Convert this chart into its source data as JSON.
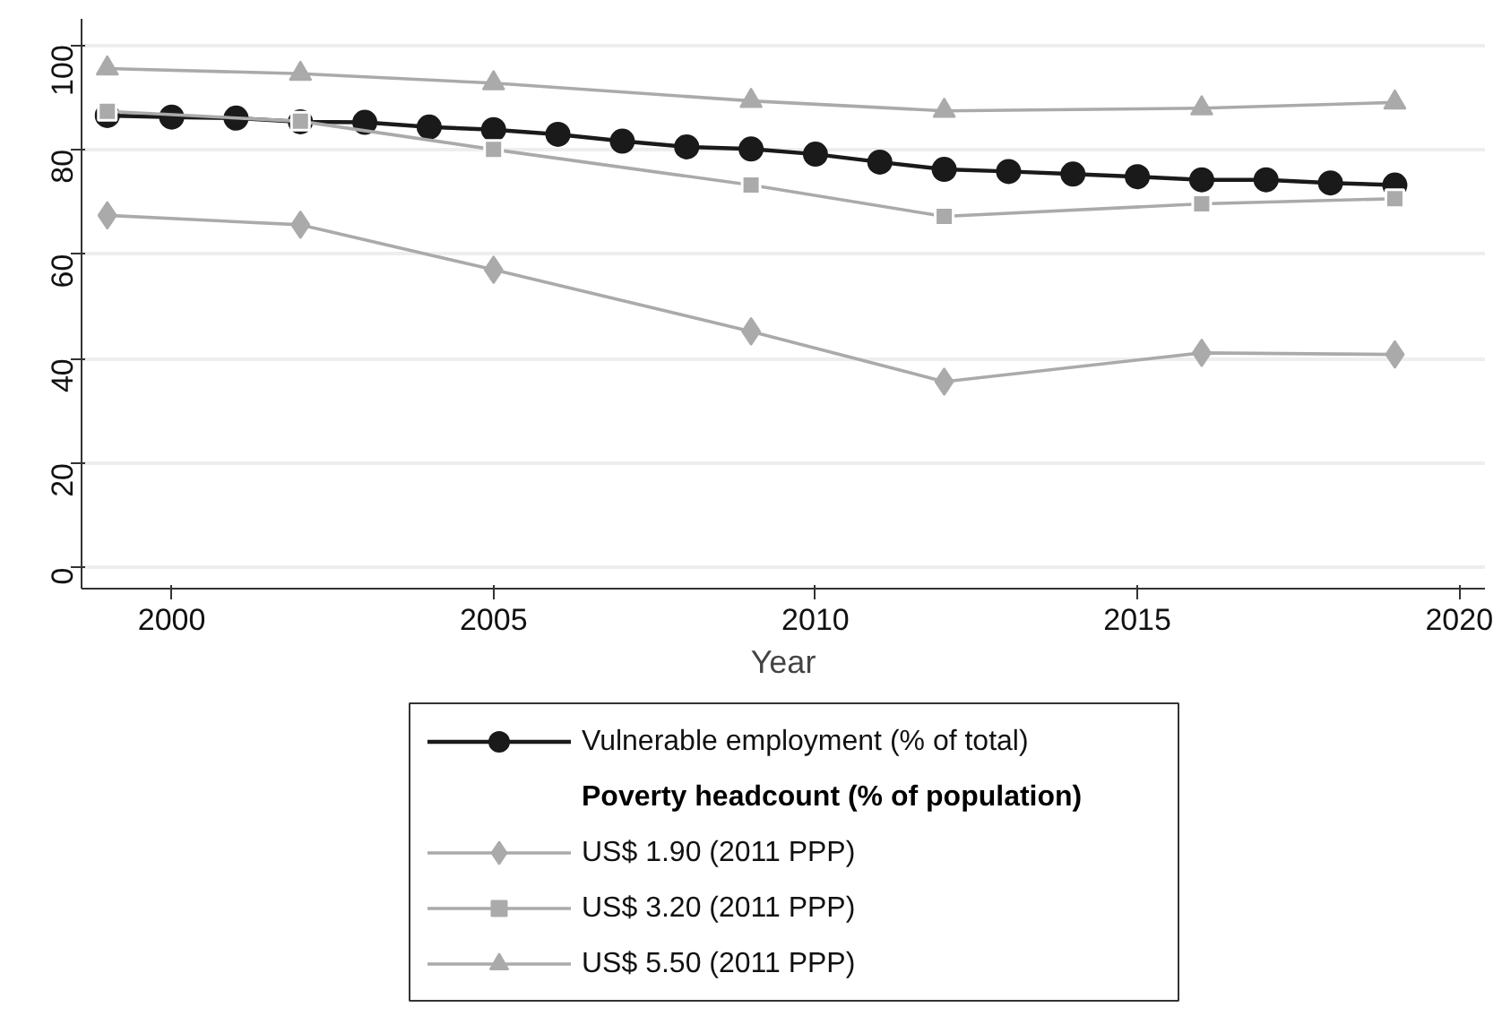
{
  "chart_data": {
    "type": "line",
    "xlabel": "Year",
    "legend_title": "Poverty headcount (% of population)",
    "xlim": [
      1998.6,
      2020.4
    ],
    "xticks": [
      2000,
      2005,
      2010,
      2015,
      2020
    ],
    "ylim": [
      -4,
      105
    ],
    "yticks": [
      0,
      20,
      40,
      60,
      80,
      100
    ],
    "grid": "y",
    "legend": "bottom",
    "series": [
      {
        "name": "Vulnerable employment (% of total)",
        "color": "#1a1a1a",
        "marker": "circle",
        "x": [
          1999,
          2000,
          2001,
          2002,
          2003,
          2004,
          2005,
          2006,
          2007,
          2008,
          2009,
          2010,
          2011,
          2012,
          2013,
          2014,
          2015,
          2016,
          2017,
          2018,
          2019
        ],
        "values": [
          86.5,
          86.2,
          86.0,
          85.3,
          85.2,
          84.3,
          83.8,
          82.9,
          81.6,
          80.5,
          80.1,
          79.1,
          77.6,
          76.2,
          75.8,
          75.3,
          74.8,
          74.2,
          74.2,
          73.6,
          73.2
        ]
      },
      {
        "name": "US$ 1.90 (2011 PPP)",
        "color": "#aaaaaa",
        "marker": "diamond",
        "x": [
          1999,
          2002,
          2005,
          2009,
          2012,
          2016,
          2019
        ],
        "values": [
          67.4,
          65.6,
          57.0,
          45.2,
          35.6,
          41.1,
          40.8
        ]
      },
      {
        "name": "US$ 3.20 (2011 PPP)",
        "color": "#aaaaaa",
        "marker": "square",
        "x": [
          1999,
          2002,
          2005,
          2009,
          2012,
          2016,
          2019
        ],
        "values": [
          87.3,
          85.4,
          80.0,
          73.2,
          67.2,
          69.6,
          70.6
        ]
      },
      {
        "name": "US$ 5.50 (2011 PPP)",
        "color": "#aaaaaa",
        "marker": "triangle",
        "x": [
          1999,
          2002,
          2005,
          2009,
          2012,
          2016,
          2019
        ],
        "values": [
          95.5,
          94.5,
          92.7,
          89.3,
          87.4,
          87.9,
          89.0
        ]
      }
    ]
  }
}
